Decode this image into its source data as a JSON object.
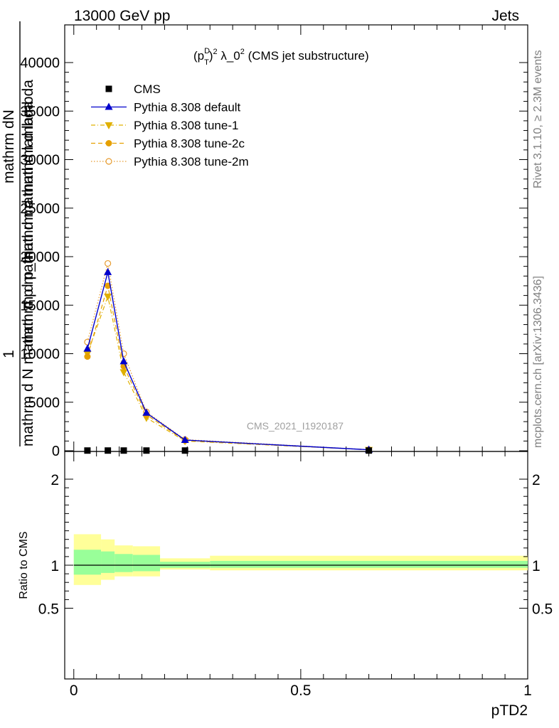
{
  "header": {
    "energy": "13000 GeV pp",
    "process": "Jets"
  },
  "side_labels": {
    "rivet": "Rivet 3.1.10, ≥ 2.3M events",
    "mcplots": "mcplots.cern.ch [arXiv:1306.3436]"
  },
  "watermark": "CMS_2021_I1920187",
  "colors": {
    "data": "#000000",
    "default": "#0000cc",
    "tune1": "#e0b000",
    "tune2c": "#e6a000",
    "tune2m": "#e69b2e",
    "band_inner": "#99ff99",
    "band_outer": "#ffff99"
  },
  "chart_data": [
    {
      "type": "line",
      "title": "(p_T^D)^2 λ_0^2 (CMS jet substructure)",
      "title_parts": {
        "pre": "(p",
        "sup1": "D",
        "sub1": "T",
        "mid": ")",
        "sup2": "2",
        "lam": " λ_0",
        "sup3": "2",
        "post": " (CMS jet substructure)"
      },
      "ylabel_main": "1",
      "ylabel_num": "mathrm dN",
      "ylabel_num2": "mathrm d p_mathrm d mathrm d lambda",
      "ylabel_den": "mathrm d N  mathrm d p mathrm d mathrm d lambda",
      "ylim": [
        0,
        44000
      ],
      "yticks": [
        0,
        5000,
        10000,
        15000,
        20000,
        25000,
        30000,
        35000,
        40000
      ],
      "ytick_labels": [
        "0",
        "5000",
        "10000",
        "15000",
        "20000",
        "25000",
        "30000",
        "35000",
        "40000"
      ],
      "legend_placement": "top-left",
      "series": [
        {
          "name": "CMS",
          "style": "data",
          "x": [
            0.03,
            0.075,
            0.11,
            0.16,
            0.245,
            0.65
          ],
          "y": [
            20,
            20,
            20,
            20,
            20,
            20
          ]
        },
        {
          "name": "Pythia 8.308 default",
          "style": "default",
          "x": [
            0.03,
            0.075,
            0.11,
            0.16,
            0.245,
            0.65
          ],
          "y": [
            10500,
            18400,
            9200,
            3900,
            1100,
            100
          ]
        },
        {
          "name": "Pythia 8.308 tune-1",
          "style": "tune1",
          "x": [
            0.03,
            0.075,
            0.11,
            0.16,
            0.245,
            0.65
          ],
          "y": [
            10000,
            15900,
            8100,
            3400,
            1000,
            100
          ]
        },
        {
          "name": "Pythia 8.308 tune-2c",
          "style": "tune2c",
          "x": [
            0.03,
            0.075,
            0.11,
            0.16,
            0.245,
            0.65
          ],
          "y": [
            9700,
            17000,
            8700,
            3700,
            1050,
            100
          ]
        },
        {
          "name": "Pythia 8.308 tune-2m",
          "style": "tune2m",
          "x": [
            0.03,
            0.075,
            0.11,
            0.16,
            0.245,
            0.65
          ],
          "y": [
            11200,
            19300,
            10000,
            4000,
            1150,
            110
          ]
        }
      ]
    },
    {
      "type": "area",
      "ylabel": "Ratio to CMS",
      "xlabel": "pTD2",
      "xlim": [
        -0.02,
        1.0
      ],
      "ylim": [
        0.35,
        2.25
      ],
      "yticks": [
        0.5,
        1,
        2
      ],
      "ytick_labels": [
        "0.5",
        "1",
        "2"
      ],
      "xticks": [
        0,
        0.5,
        1
      ],
      "xtick_labels": [
        "0",
        "0.5",
        "1"
      ],
      "reference": 1,
      "bands": [
        {
          "x0": 0.0,
          "x1": 0.06,
          "inner": [
            0.89,
            1.18
          ],
          "outer": [
            0.77,
            1.36
          ]
        },
        {
          "x0": 0.06,
          "x1": 0.09,
          "inner": [
            0.91,
            1.16
          ],
          "outer": [
            0.83,
            1.3
          ]
        },
        {
          "x0": 0.09,
          "x1": 0.13,
          "inner": [
            0.92,
            1.13
          ],
          "outer": [
            0.87,
            1.23
          ]
        },
        {
          "x0": 0.13,
          "x1": 0.19,
          "inner": [
            0.93,
            1.12
          ],
          "outer": [
            0.87,
            1.22
          ]
        },
        {
          "x0": 0.19,
          "x1": 0.3,
          "inner": [
            0.97,
            1.04
          ],
          "outer": [
            0.95,
            1.08
          ]
        },
        {
          "x0": 0.3,
          "x1": 1.0,
          "inner": [
            0.97,
            1.05
          ],
          "outer": [
            0.94,
            1.11
          ]
        }
      ]
    }
  ]
}
